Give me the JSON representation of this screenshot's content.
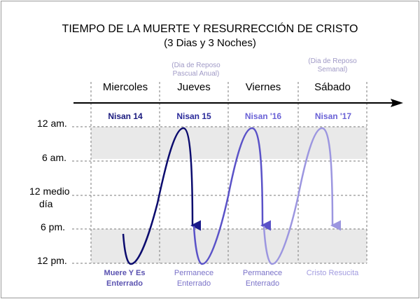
{
  "title": "TIEMPO DE LA MUERTE Y RESURRECCIÓN DE CRISTO",
  "subtitle": "(3 Dias y 3 Noches)",
  "notes": {
    "pascual": "(Dia de Reposo Pascual Anual)",
    "semanal": "(Dia de Reposo Semanal)"
  },
  "days": [
    {
      "name": "Miercoles",
      "nisan": "Nisan 14",
      "caption": "Muere Y Es Enterrado",
      "color": "#1a1a7e"
    },
    {
      "name": "Jueves",
      "nisan": "Nisan 15",
      "caption": "Permanece Enterrado",
      "color": "#2a2a9a"
    },
    {
      "name": "Viernes",
      "nisan": "Nisan '16",
      "caption": "Permanece Enterrado",
      "color": "#6a62d6"
    },
    {
      "name": "Sábado",
      "nisan": "Nisan '17",
      "caption": "Cristo Resucita",
      "color": "#a29ce0"
    }
  ],
  "time_labels": {
    "t12am": "12 am.",
    "t6am": "6 am.",
    "t12mid_a": "12 medio",
    "t12mid_b": "día",
    "t6pm": "6 pm.",
    "t12pm": "12 pm."
  },
  "colors": {
    "grid": "#7a7a7a",
    "band": "#e9e9e9",
    "curve_dark": "#0b0b6e",
    "curve_mid": "#5a52c8",
    "curve_light": "#9c96e0"
  }
}
